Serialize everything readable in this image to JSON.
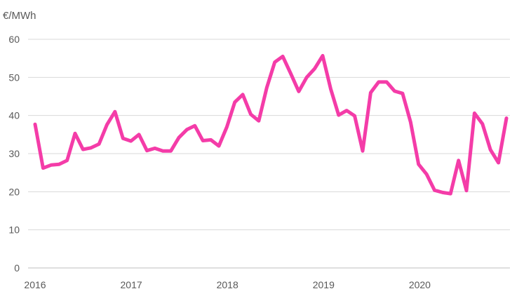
{
  "chart_data": {
    "type": "line",
    "ylabel": "€/MWh",
    "ylim": [
      0,
      60
    ],
    "yticks": [
      0,
      10,
      20,
      30,
      40,
      50,
      60
    ],
    "xlim": [
      2016,
      2021
    ],
    "xticks": [
      "2016",
      "2017",
      "2018",
      "2019",
      "2020"
    ],
    "grid": true,
    "legend": "none",
    "colors": {
      "line": "#F43CA8",
      "grid": "#D9D9D9",
      "text": "#595959"
    },
    "series": [
      {
        "x": [
          2016.0,
          2016.0833,
          2016.1667,
          2016.25,
          2016.3333,
          2016.4167,
          2016.5,
          2016.5833,
          2016.6667,
          2016.75,
          2016.8333,
          2016.9167,
          2017.0,
          2017.0833,
          2017.1667,
          2017.25,
          2017.3333,
          2017.4167,
          2017.5,
          2017.5833,
          2017.6667,
          2017.75,
          2017.8333,
          2017.9167,
          2018.0,
          2018.0833,
          2018.1667,
          2018.25,
          2018.3333,
          2018.4167,
          2018.5,
          2018.5833,
          2018.6667,
          2018.75,
          2018.8333,
          2018.9167,
          2019.0,
          2019.0833,
          2019.1667,
          2019.25,
          2019.3333,
          2019.4167,
          2019.5,
          2019.5833,
          2019.6667,
          2019.75,
          2019.8333,
          2019.9167,
          2020.0,
          2020.0833,
          2020.1667,
          2020.25,
          2020.3333,
          2020.4167,
          2020.5,
          2020.5833,
          2020.6667,
          2020.75,
          2020.8333,
          2020.9167
        ],
        "values": [
          37.7,
          26.2,
          27.0,
          27.2,
          28.2,
          35.3,
          31.1,
          31.5,
          32.5,
          37.6,
          41.0,
          34.0,
          33.3,
          35.0,
          30.8,
          31.4,
          30.7,
          30.7,
          34.2,
          36.3,
          37.3,
          33.4,
          33.6,
          32.0,
          37.0,
          43.5,
          45.5,
          40.3,
          38.6,
          47.3,
          54.0,
          55.5,
          51.0,
          46.3,
          50.0,
          52.3,
          55.7,
          47.0,
          40.1,
          41.3,
          39.9,
          30.7,
          46.0,
          48.8,
          48.8,
          46.4,
          45.8,
          38.3,
          27.2,
          24.6,
          20.4,
          19.8,
          19.5,
          28.2,
          20.3,
          40.6,
          37.8,
          31.0,
          27.6,
          39.3
        ]
      }
    ]
  }
}
